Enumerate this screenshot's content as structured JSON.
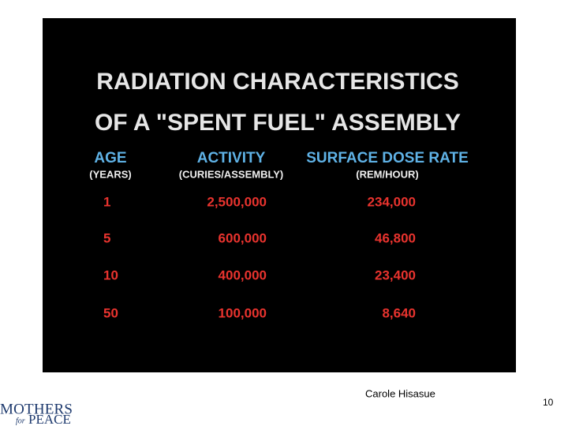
{
  "slide": {
    "title": [
      "RADIATION CHARACTERISTICS",
      "OF A \"SPENT FUEL\" ASSEMBLY"
    ],
    "table": {
      "headers": [
        "AGE",
        "ACTIVITY",
        "SURFACE DOSE RATE"
      ],
      "units": [
        "(YEARS)",
        "(CURIES/ASSEMBLY)",
        "(REM/HOUR)"
      ],
      "rows": [
        [
          "1",
          "2,500,000",
          "234,000"
        ],
        [
          "5",
          "600,000",
          "46,800"
        ],
        [
          "10",
          "400,000",
          "23,400"
        ],
        [
          "50",
          "100,000",
          "8,640"
        ]
      ]
    },
    "author": "Carole Hisasue",
    "page_number": "10",
    "logo": {
      "line1": "MOTHERS",
      "small": "for",
      "line2": "PEACE"
    }
  }
}
